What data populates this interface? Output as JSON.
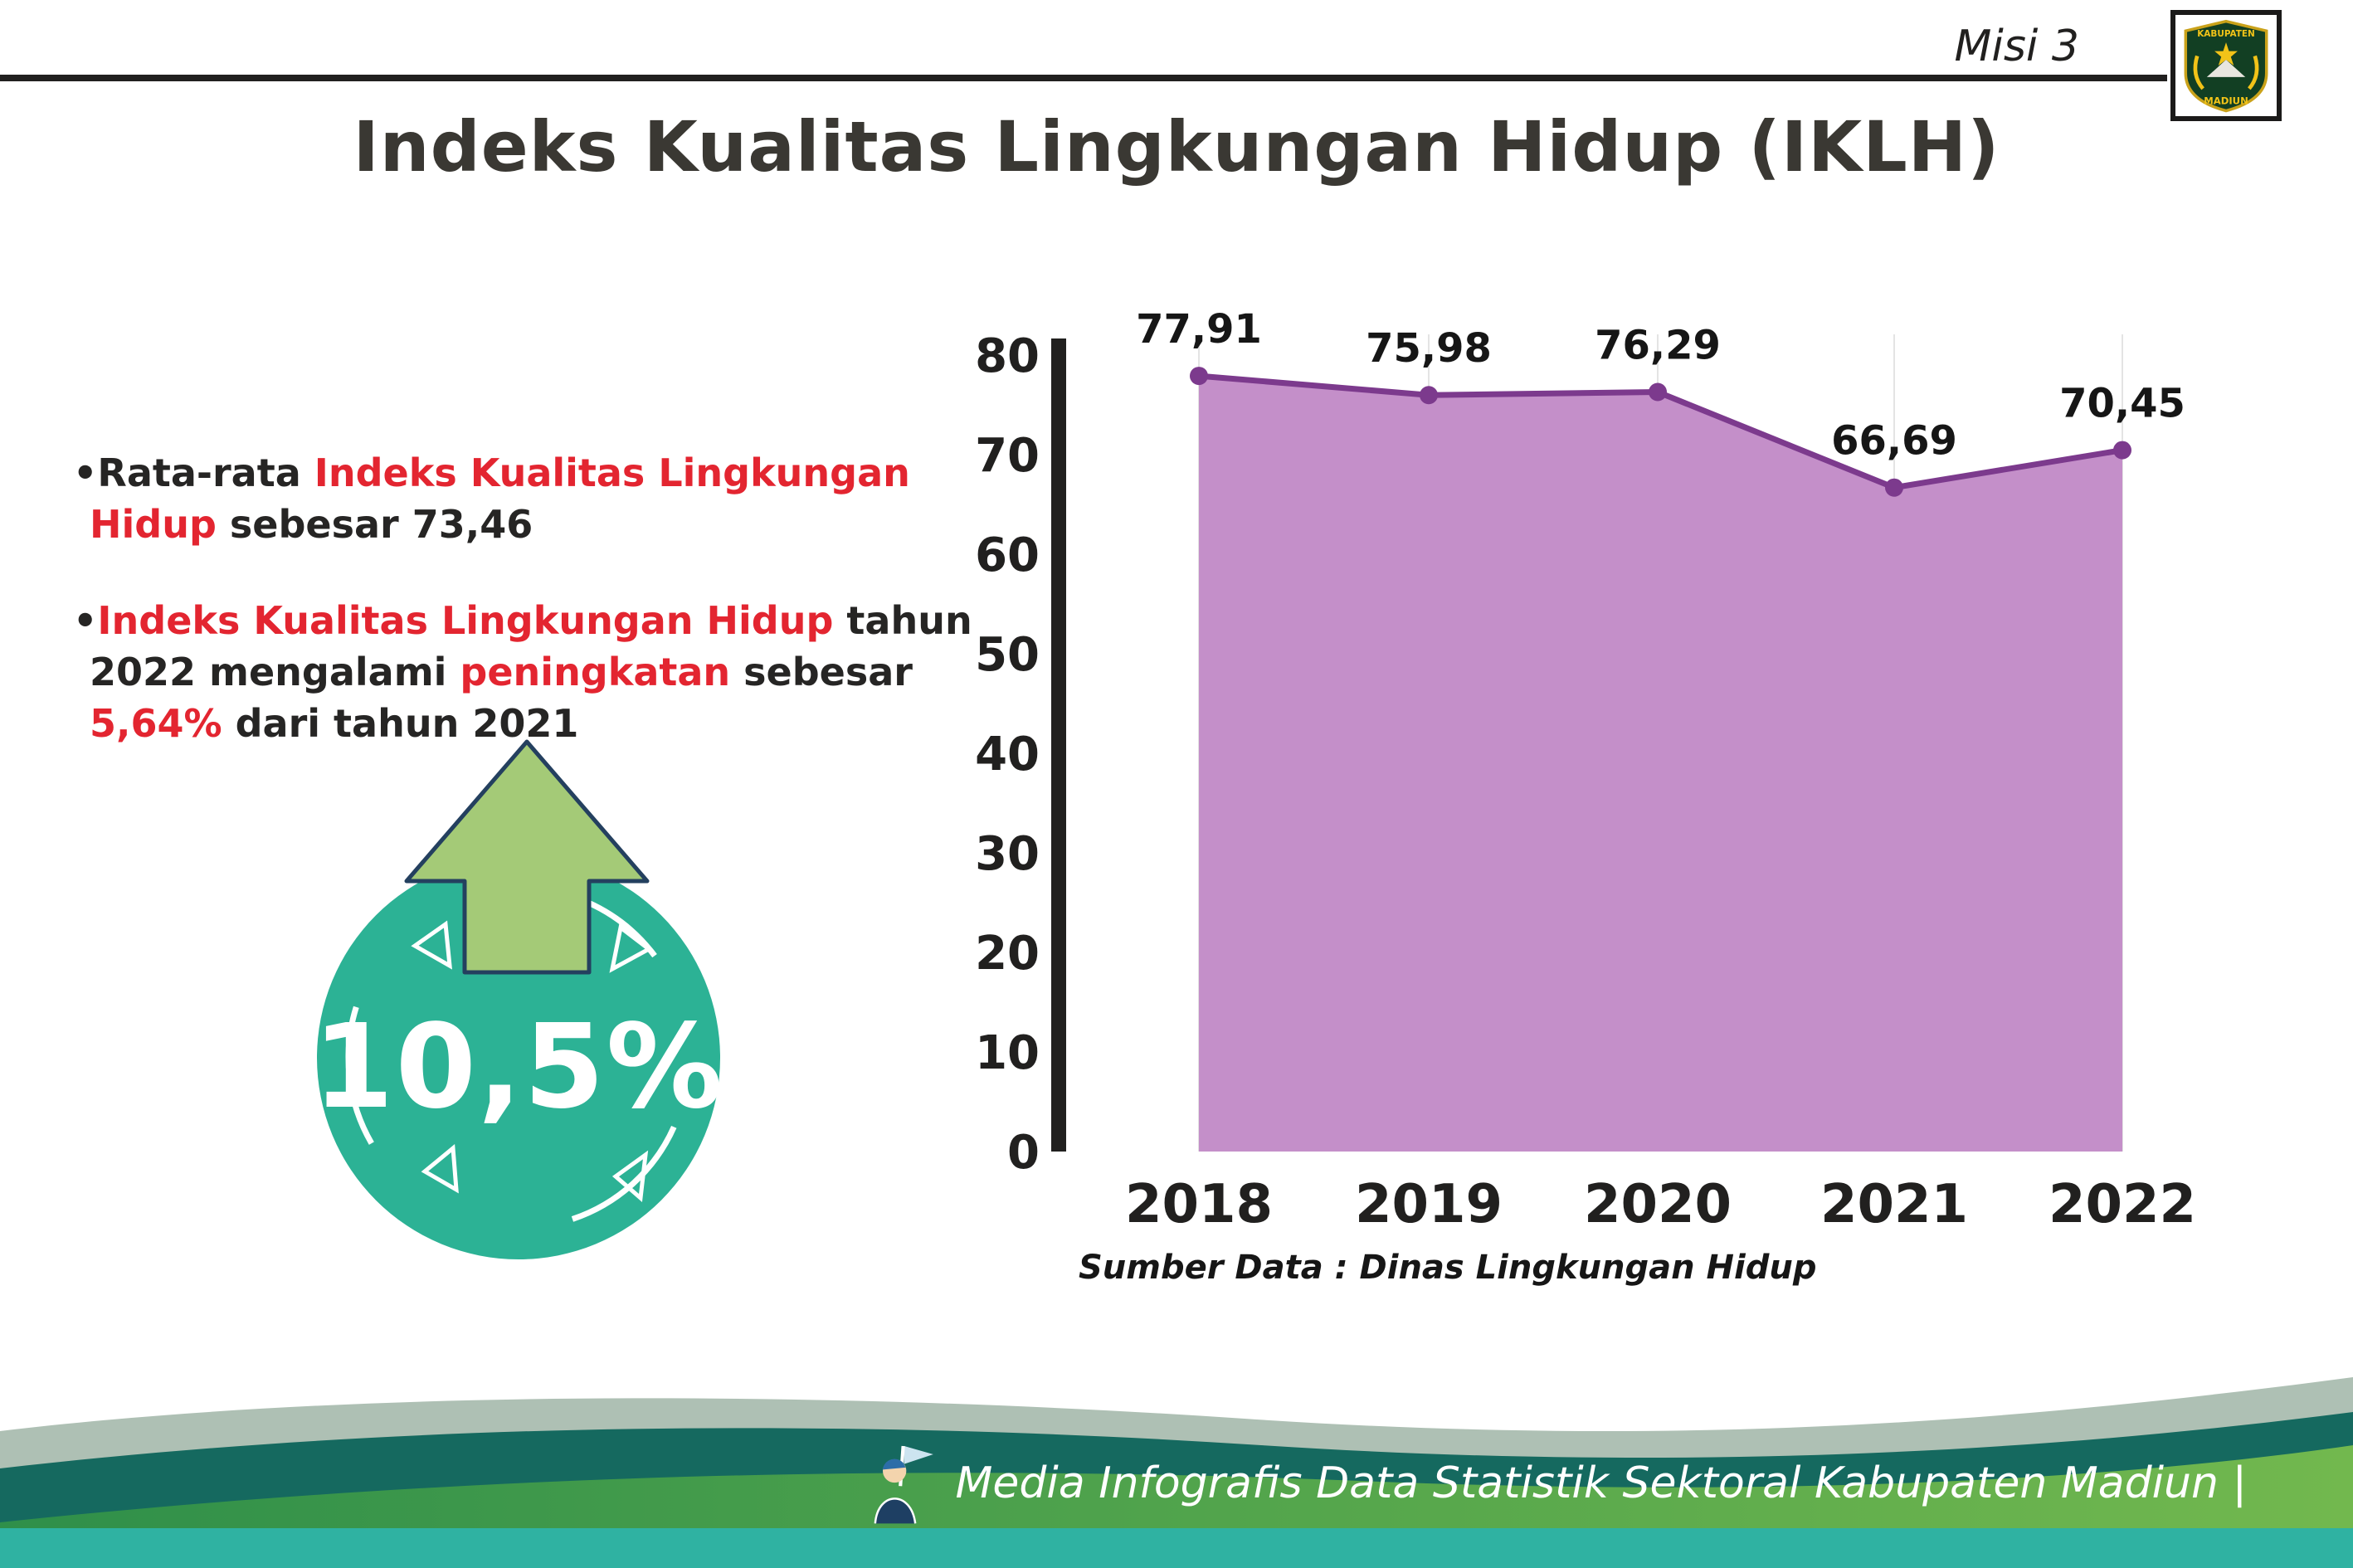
{
  "header": {
    "misi_label": "Misi 3",
    "title": "Indeks Kualitas Lingkungan Hidup (IKLH)",
    "logo": {
      "top_text": "KABUPATEN",
      "bottom_text": "MADIUN"
    }
  },
  "bullets": {
    "dot": "•",
    "b1": {
      "t1": "Rata-rata ",
      "t2": "Indeks Kualitas Lingkungan Hidup",
      "t3": " sebesar 73,46"
    },
    "b2": {
      "t1": "Indeks Kualitas Lingkungan Hidup",
      "t2": " tahun 2022 mengalami ",
      "t3": "peningkatan",
      "t4": " sebesar ",
      "t5": "5,64%",
      "t6": " dari tahun 2021"
    }
  },
  "badge": {
    "value": "10,5%"
  },
  "chart_data": {
    "type": "area",
    "title": "",
    "categories": [
      "2018",
      "2019",
      "2020",
      "2021",
      "2022"
    ],
    "values": [
      77.91,
      75.98,
      76.29,
      66.69,
      70.45
    ],
    "value_labels": [
      "77,91",
      "75,98",
      "76,29",
      "66,69",
      "70,45"
    ],
    "ylim": [
      0,
      80
    ],
    "yticks": [
      0,
      10,
      20,
      30,
      40,
      50,
      60,
      70,
      80
    ],
    "grid": "vertical-faint",
    "legend": "none",
    "fill_color": "#c48fc9",
    "line_color": "#7c3a8d",
    "source": "Sumber Data : Dinas Lingkungan Hidup"
  },
  "footer": {
    "text": "Media Infografis Data Statistik Sektoral Kabupaten Madiun |"
  },
  "colors": {
    "accent_red": "#e32530",
    "badge_teal": "#2cb295",
    "arrow_green": "#a4ca77",
    "footer_sage": "#aec0b4",
    "footer_teal_dark": "#15695f",
    "footer_green": "#3c9549",
    "footer_strip": "#2fb2a2"
  }
}
